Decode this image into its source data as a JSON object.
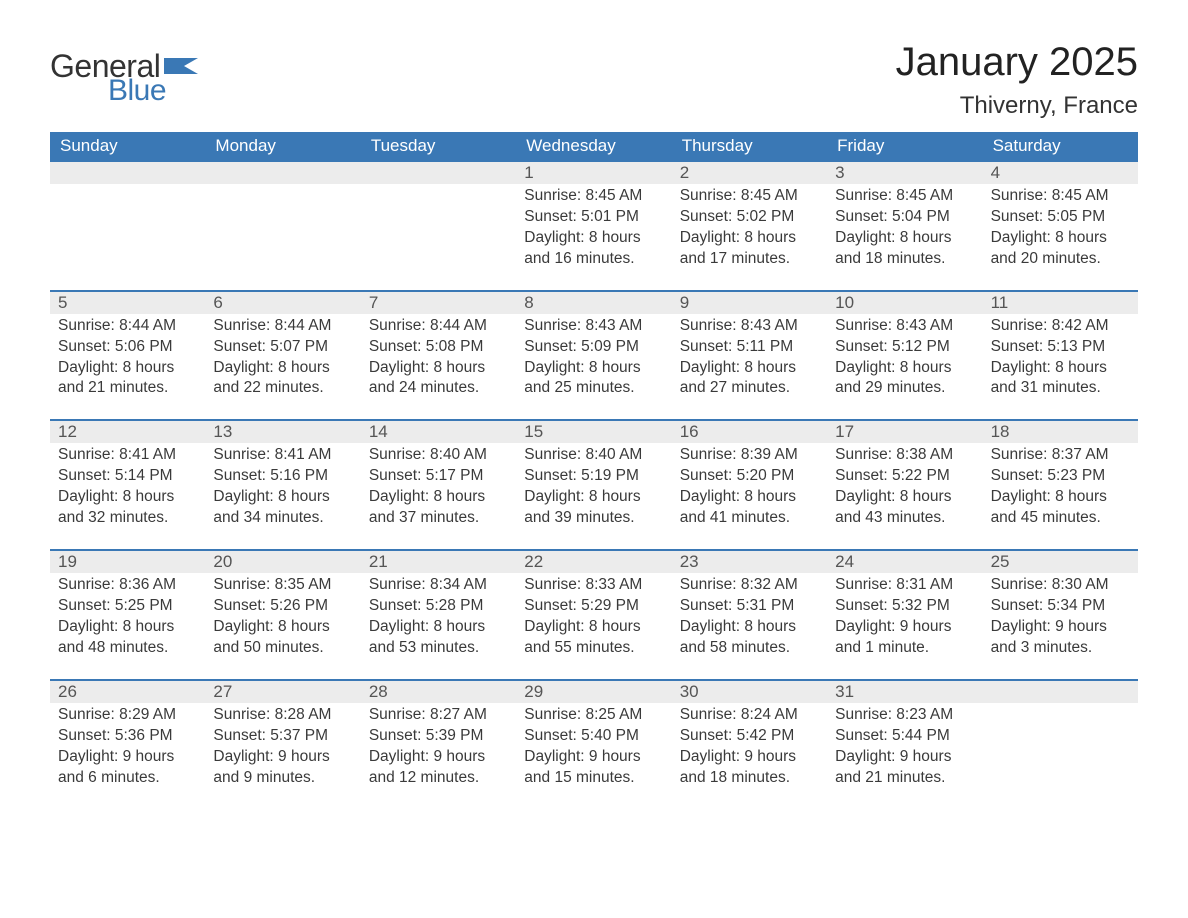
{
  "brand": {
    "word1": "General",
    "word2": "Blue",
    "flag_color": "#3a78b5"
  },
  "title": "January 2025",
  "location": "Thiverny, France",
  "colors": {
    "header_bg": "#3a78b5",
    "header_text": "#ffffff",
    "daynum_bg": "#ececec",
    "cell_border": "#3a78b5",
    "body_text": "#3a3a3a",
    "page_bg": "#ffffff"
  },
  "layout": {
    "columns": 7,
    "first_weekday": "Sunday",
    "leading_blanks": 3,
    "trailing_blanks": 1
  },
  "daysOfWeek": [
    "Sunday",
    "Monday",
    "Tuesday",
    "Wednesday",
    "Thursday",
    "Friday",
    "Saturday"
  ],
  "labels": {
    "sunrise": "Sunrise:",
    "sunset": "Sunset:",
    "daylight": "Daylight:"
  },
  "days": [
    {
      "n": 1,
      "sunrise": "8:45 AM",
      "sunset": "5:01 PM",
      "daylight": "8 hours and 16 minutes."
    },
    {
      "n": 2,
      "sunrise": "8:45 AM",
      "sunset": "5:02 PM",
      "daylight": "8 hours and 17 minutes."
    },
    {
      "n": 3,
      "sunrise": "8:45 AM",
      "sunset": "5:04 PM",
      "daylight": "8 hours and 18 minutes."
    },
    {
      "n": 4,
      "sunrise": "8:45 AM",
      "sunset": "5:05 PM",
      "daylight": "8 hours and 20 minutes."
    },
    {
      "n": 5,
      "sunrise": "8:44 AM",
      "sunset": "5:06 PM",
      "daylight": "8 hours and 21 minutes."
    },
    {
      "n": 6,
      "sunrise": "8:44 AM",
      "sunset": "5:07 PM",
      "daylight": "8 hours and 22 minutes."
    },
    {
      "n": 7,
      "sunrise": "8:44 AM",
      "sunset": "5:08 PM",
      "daylight": "8 hours and 24 minutes."
    },
    {
      "n": 8,
      "sunrise": "8:43 AM",
      "sunset": "5:09 PM",
      "daylight": "8 hours and 25 minutes."
    },
    {
      "n": 9,
      "sunrise": "8:43 AM",
      "sunset": "5:11 PM",
      "daylight": "8 hours and 27 minutes."
    },
    {
      "n": 10,
      "sunrise": "8:43 AM",
      "sunset": "5:12 PM",
      "daylight": "8 hours and 29 minutes."
    },
    {
      "n": 11,
      "sunrise": "8:42 AM",
      "sunset": "5:13 PM",
      "daylight": "8 hours and 31 minutes."
    },
    {
      "n": 12,
      "sunrise": "8:41 AM",
      "sunset": "5:14 PM",
      "daylight": "8 hours and 32 minutes."
    },
    {
      "n": 13,
      "sunrise": "8:41 AM",
      "sunset": "5:16 PM",
      "daylight": "8 hours and 34 minutes."
    },
    {
      "n": 14,
      "sunrise": "8:40 AM",
      "sunset": "5:17 PM",
      "daylight": "8 hours and 37 minutes."
    },
    {
      "n": 15,
      "sunrise": "8:40 AM",
      "sunset": "5:19 PM",
      "daylight": "8 hours and 39 minutes."
    },
    {
      "n": 16,
      "sunrise": "8:39 AM",
      "sunset": "5:20 PM",
      "daylight": "8 hours and 41 minutes."
    },
    {
      "n": 17,
      "sunrise": "8:38 AM",
      "sunset": "5:22 PM",
      "daylight": "8 hours and 43 minutes."
    },
    {
      "n": 18,
      "sunrise": "8:37 AM",
      "sunset": "5:23 PM",
      "daylight": "8 hours and 45 minutes."
    },
    {
      "n": 19,
      "sunrise": "8:36 AM",
      "sunset": "5:25 PM",
      "daylight": "8 hours and 48 minutes."
    },
    {
      "n": 20,
      "sunrise": "8:35 AM",
      "sunset": "5:26 PM",
      "daylight": "8 hours and 50 minutes."
    },
    {
      "n": 21,
      "sunrise": "8:34 AM",
      "sunset": "5:28 PM",
      "daylight": "8 hours and 53 minutes."
    },
    {
      "n": 22,
      "sunrise": "8:33 AM",
      "sunset": "5:29 PM",
      "daylight": "8 hours and 55 minutes."
    },
    {
      "n": 23,
      "sunrise": "8:32 AM",
      "sunset": "5:31 PM",
      "daylight": "8 hours and 58 minutes."
    },
    {
      "n": 24,
      "sunrise": "8:31 AM",
      "sunset": "5:32 PM",
      "daylight": "9 hours and 1 minute."
    },
    {
      "n": 25,
      "sunrise": "8:30 AM",
      "sunset": "5:34 PM",
      "daylight": "9 hours and 3 minutes."
    },
    {
      "n": 26,
      "sunrise": "8:29 AM",
      "sunset": "5:36 PM",
      "daylight": "9 hours and 6 minutes."
    },
    {
      "n": 27,
      "sunrise": "8:28 AM",
      "sunset": "5:37 PM",
      "daylight": "9 hours and 9 minutes."
    },
    {
      "n": 28,
      "sunrise": "8:27 AM",
      "sunset": "5:39 PM",
      "daylight": "9 hours and 12 minutes."
    },
    {
      "n": 29,
      "sunrise": "8:25 AM",
      "sunset": "5:40 PM",
      "daylight": "9 hours and 15 minutes."
    },
    {
      "n": 30,
      "sunrise": "8:24 AM",
      "sunset": "5:42 PM",
      "daylight": "9 hours and 18 minutes."
    },
    {
      "n": 31,
      "sunrise": "8:23 AM",
      "sunset": "5:44 PM",
      "daylight": "9 hours and 21 minutes."
    }
  ]
}
